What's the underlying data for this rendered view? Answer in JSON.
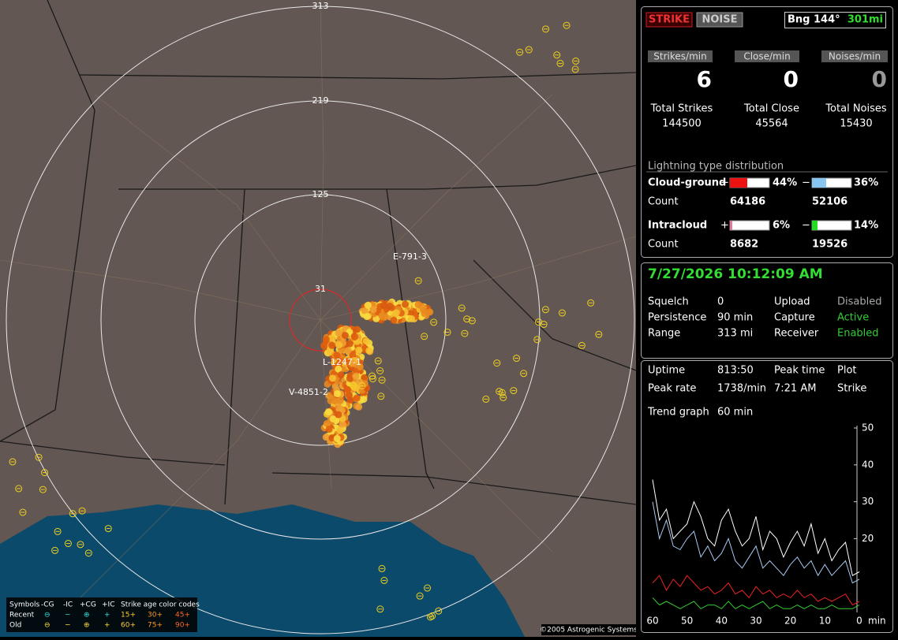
{
  "header": {
    "buttons": [
      "STRIKE",
      "NOISE"
    ],
    "bearing": "Bng 144°",
    "distance": "301mi"
  },
  "rates": [
    {
      "label": "Strikes/min",
      "value": 6
    },
    {
      "label": "Close/min",
      "value": 0
    },
    {
      "label": "Noises/min",
      "value": 0
    }
  ],
  "totals": [
    {
      "label": "Total Strikes",
      "value": 144500
    },
    {
      "label": "Total Close",
      "value": 45564
    },
    {
      "label": "Total Noises",
      "value": 15430
    }
  ],
  "distribution": {
    "title": "Lightning type distribution",
    "count_label": "Count",
    "plus": "+",
    "minus": "−",
    "rows": [
      {
        "label": "Cloud-ground",
        "pos_pct": {
          "value": 44,
          "label": "44%"
        },
        "neg_pct": {
          "value": 36,
          "label": "36%"
        },
        "pos_count": 64186,
        "neg_count": 52106,
        "pos_color": "#ee1111",
        "neg_color": "#88c4f0"
      },
      {
        "label": "Intracloud",
        "pos_pct": {
          "value": 6,
          "label": "6%"
        },
        "neg_pct": {
          "value": 14,
          "label": "14%"
        },
        "pos_count": 8682,
        "neg_count": 19526,
        "pos_color": "#e07aa0",
        "neg_color": "#22dd22"
      }
    ]
  },
  "datetime": "7/27/2026 10:12:09 AM",
  "status": [
    {
      "cells": [
        "Squelch",
        "0",
        "Upload",
        "Disabled"
      ],
      "state_color": "#aaaaaa"
    },
    {
      "cells": [
        "Persistence",
        "90 min",
        "Capture",
        "Active"
      ],
      "state_color": "#33cc33"
    },
    {
      "cells": [
        "Range",
        "313 mi",
        "Receiver",
        "Enabled"
      ],
      "state_color": "#33cc33"
    }
  ],
  "stats": [
    [
      "Uptime",
      "813:50",
      "Peak time",
      "Plot"
    ],
    [
      "Peak rate",
      "1738/min",
      "7:21 AM",
      "Strike"
    ],
    [
      "Trend graph",
      "60 min"
    ]
  ],
  "trend": {
    "type": "line",
    "x_unit": "min",
    "xlim": [
      60,
      0
    ],
    "ylim": [
      0,
      50
    ],
    "yticks": [
      20,
      30,
      40,
      50
    ],
    "xticks": [
      60,
      50,
      40,
      30,
      20,
      10,
      0
    ],
    "x": [
      60,
      58,
      56,
      54,
      52,
      50,
      48,
      46,
      44,
      42,
      40,
      38,
      36,
      34,
      32,
      30,
      28,
      26,
      24,
      22,
      20,
      18,
      16,
      14,
      12,
      10,
      8,
      6,
      4,
      2,
      0
    ],
    "series": [
      {
        "color": "#ffffff",
        "values": [
          36,
          25,
          28,
          20,
          22,
          24,
          30,
          26,
          20,
          18,
          25,
          28,
          22,
          18,
          20,
          26,
          17,
          22,
          20,
          15,
          19,
          22,
          18,
          24,
          16,
          20,
          14,
          17,
          19,
          10,
          11
        ]
      },
      {
        "color": "#a8c8f0",
        "values": [
          30,
          20,
          25,
          18,
          17,
          20,
          22,
          15,
          18,
          14,
          16,
          20,
          14,
          12,
          15,
          18,
          12,
          14,
          12,
          10,
          13,
          15,
          12,
          14,
          10,
          13,
          10,
          12,
          14,
          8,
          9
        ]
      },
      {
        "color": "#ee2222",
        "values": [
          8,
          10,
          6,
          9,
          7,
          10,
          8,
          6,
          7,
          5,
          6,
          8,
          5,
          6,
          4,
          7,
          5,
          6,
          4,
          5,
          4,
          6,
          4,
          5,
          3,
          4,
          3,
          4,
          5,
          2,
          3
        ]
      },
      {
        "color": "#33cc33",
        "values": [
          4,
          2,
          3,
          2,
          1,
          2,
          3,
          1,
          2,
          2,
          1,
          3,
          1,
          2,
          1,
          2,
          3,
          1,
          2,
          1,
          1,
          2,
          1,
          2,
          1,
          1,
          2,
          1,
          1,
          1,
          2
        ]
      }
    ]
  },
  "map": {
    "ring_labels": [
      "313",
      "219",
      "125",
      "31"
    ],
    "storm_labels": [
      "E-791-3",
      "L-1247-1",
      "V-4851-2"
    ],
    "legend": {
      "rows": [
        [
          "Symbols",
          "-CG",
          "-IC",
          "+CG",
          "+IC",
          "Strike age color codes"
        ],
        [
          "Recent",
          "⊖",
          "−",
          "⊕",
          "+",
          "15+",
          "30+",
          "45+"
        ],
        [
          "Old",
          "⊖",
          "−",
          "⊕",
          "+",
          "60+",
          "75+",
          "90+"
        ]
      ]
    },
    "copyright": "©2005 Astrogenic Systems"
  }
}
